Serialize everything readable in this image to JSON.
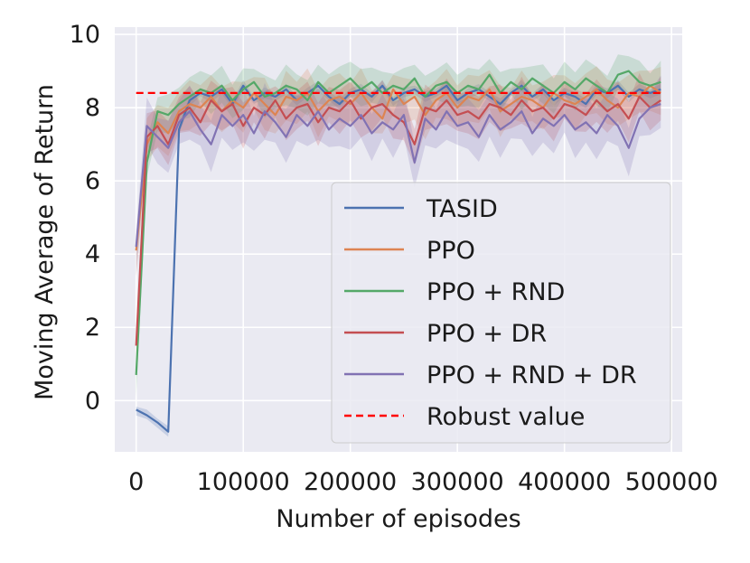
{
  "chart_data": {
    "type": "line",
    "title": "",
    "xlabel": "Number of episodes",
    "ylabel": "Moving Average of Return",
    "xlim": [
      -20000,
      510000
    ],
    "ylim": [
      -1.4,
      10.2
    ],
    "xticks": [
      0,
      100000,
      200000,
      300000,
      400000,
      500000
    ],
    "xtick_labels": [
      "0",
      "100000",
      "200000",
      "300000",
      "400000",
      "500000"
    ],
    "yticks": [
      0,
      2,
      4,
      6,
      8,
      10
    ],
    "ytick_labels": [
      "0",
      "2",
      "4",
      "6",
      "8",
      10
    ],
    "grid": true,
    "background": "#eaeaf2",
    "legend_position": "center-right",
    "series": [
      {
        "name": "TASID",
        "color": "#4c72b0",
        "x": [
          0,
          10000,
          20000,
          30000,
          40000,
          50000,
          60000,
          70000,
          80000,
          90000,
          100000,
          110000,
          120000,
          130000,
          140000,
          150000,
          160000,
          170000,
          180000,
          190000,
          200000,
          210000,
          220000,
          230000,
          240000,
          250000,
          260000,
          270000,
          280000,
          290000,
          300000,
          310000,
          320000,
          330000,
          340000,
          350000,
          360000,
          370000,
          380000,
          390000,
          400000,
          410000,
          420000,
          430000,
          440000,
          450000,
          460000,
          470000,
          480000,
          490000
        ],
        "y": [
          -0.25,
          -0.4,
          -0.6,
          -0.85,
          7.4,
          8.2,
          8.4,
          8.3,
          8.5,
          8.1,
          8.6,
          8.2,
          8.4,
          8.3,
          8.5,
          8.2,
          8.4,
          8.6,
          8.3,
          8.1,
          8.4,
          8.5,
          8.3,
          8.6,
          8.2,
          8.4,
          8.5,
          8.3,
          8.4,
          8.6,
          8.2,
          8.4,
          8.5,
          8.3,
          8.1,
          8.4,
          8.6,
          8.3,
          8.5,
          8.2,
          8.4,
          8.3,
          8.1,
          8.5,
          8.4,
          8.6,
          8.3,
          8.5,
          8.4,
          8.5
        ],
        "band": 0.12
      },
      {
        "name": "PPO",
        "color": "#dd8452",
        "x": [
          0,
          10000,
          20000,
          30000,
          40000,
          50000,
          60000,
          70000,
          80000,
          90000,
          100000,
          110000,
          120000,
          130000,
          140000,
          150000,
          160000,
          170000,
          180000,
          190000,
          200000,
          210000,
          220000,
          230000,
          240000,
          250000,
          260000,
          270000,
          280000,
          290000,
          300000,
          310000,
          320000,
          330000,
          340000,
          350000,
          360000,
          370000,
          380000,
          390000,
          400000,
          410000,
          420000,
          430000,
          440000,
          450000,
          460000,
          470000,
          480000,
          490000
        ],
        "y": [
          4.1,
          7.0,
          7.6,
          7.3,
          7.9,
          8.1,
          8.0,
          8.3,
          7.9,
          8.2,
          8.0,
          8.4,
          8.1,
          7.8,
          8.3,
          8.2,
          8.4,
          7.9,
          8.2,
          8.3,
          8.1,
          8.4,
          8.0,
          7.7,
          8.5,
          8.1,
          8.3,
          7.8,
          8.2,
          8.4,
          8.0,
          8.3,
          8.2,
          8.5,
          7.9,
          8.1,
          8.3,
          8.2,
          8.0,
          8.4,
          8.2,
          8.1,
          8.3,
          8.5,
          8.2,
          8.0,
          8.4,
          8.3,
          8.6,
          8.4
        ],
        "band": 0.55
      },
      {
        "name": "PPO + RND",
        "color": "#55a868",
        "x": [
          0,
          10000,
          20000,
          30000,
          40000,
          50000,
          60000,
          70000,
          80000,
          90000,
          100000,
          110000,
          120000,
          130000,
          140000,
          150000,
          160000,
          170000,
          180000,
          190000,
          200000,
          210000,
          220000,
          230000,
          240000,
          250000,
          260000,
          270000,
          280000,
          290000,
          300000,
          310000,
          320000,
          330000,
          340000,
          350000,
          360000,
          370000,
          380000,
          390000,
          400000,
          410000,
          420000,
          430000,
          440000,
          450000,
          460000,
          470000,
          480000,
          490000
        ],
        "y": [
          0.7,
          6.5,
          7.9,
          7.8,
          8.1,
          8.3,
          8.5,
          8.4,
          8.6,
          8.2,
          8.5,
          8.7,
          8.3,
          8.4,
          8.6,
          8.5,
          8.2,
          8.7,
          8.4,
          8.6,
          8.8,
          8.5,
          8.7,
          8.4,
          8.6,
          8.5,
          8.8,
          8.3,
          8.6,
          8.7,
          8.4,
          8.6,
          8.5,
          8.9,
          8.4,
          8.7,
          8.5,
          8.8,
          8.6,
          8.4,
          8.7,
          8.5,
          8.8,
          8.6,
          8.4,
          8.9,
          9.0,
          8.7,
          8.6,
          8.7
        ],
        "band": 0.45
      },
      {
        "name": "PPO + DR",
        "color": "#c44e52",
        "x": [
          0,
          10000,
          20000,
          30000,
          40000,
          50000,
          60000,
          70000,
          80000,
          90000,
          100000,
          110000,
          120000,
          130000,
          140000,
          150000,
          160000,
          170000,
          180000,
          190000,
          200000,
          210000,
          220000,
          230000,
          240000,
          250000,
          260000,
          270000,
          280000,
          290000,
          300000,
          310000,
          320000,
          330000,
          340000,
          350000,
          360000,
          370000,
          380000,
          390000,
          400000,
          410000,
          420000,
          430000,
          440000,
          450000,
          460000,
          470000,
          480000,
          490000
        ],
        "y": [
          1.5,
          7.2,
          7.5,
          7.0,
          7.8,
          8.0,
          7.6,
          8.2,
          7.9,
          8.1,
          7.5,
          8.0,
          7.8,
          8.2,
          7.7,
          8.0,
          8.1,
          7.6,
          8.0,
          7.9,
          8.2,
          7.7,
          8.0,
          8.1,
          7.8,
          7.6,
          7.0,
          8.0,
          7.9,
          8.2,
          7.8,
          7.9,
          7.7,
          8.1,
          8.0,
          7.8,
          8.2,
          7.9,
          8.0,
          7.7,
          8.1,
          8.0,
          7.8,
          8.2,
          7.9,
          8.1,
          7.7,
          8.3,
          8.0,
          8.2
        ],
        "band": 0.5
      },
      {
        "name": "PPO + RND + DR",
        "color": "#8172b3",
        "x": [
          0,
          10000,
          20000,
          30000,
          40000,
          50000,
          60000,
          70000,
          80000,
          90000,
          100000,
          110000,
          120000,
          130000,
          140000,
          150000,
          160000,
          170000,
          180000,
          190000,
          200000,
          210000,
          220000,
          230000,
          240000,
          250000,
          260000,
          270000,
          280000,
          290000,
          300000,
          310000,
          320000,
          330000,
          340000,
          350000,
          360000,
          370000,
          380000,
          390000,
          400000,
          410000,
          420000,
          430000,
          440000,
          450000,
          460000,
          470000,
          480000,
          490000
        ],
        "y": [
          4.2,
          7.5,
          7.2,
          6.9,
          7.6,
          7.9,
          7.4,
          7.0,
          7.8,
          7.5,
          7.8,
          7.3,
          7.9,
          7.6,
          7.2,
          7.8,
          7.5,
          7.9,
          7.4,
          7.7,
          7.5,
          7.8,
          7.3,
          7.6,
          7.4,
          7.8,
          6.5,
          7.7,
          7.4,
          7.9,
          7.5,
          7.6,
          7.2,
          7.8,
          7.4,
          7.6,
          7.9,
          7.3,
          7.7,
          7.5,
          7.8,
          7.4,
          7.6,
          7.3,
          7.8,
          7.5,
          6.9,
          7.7,
          8.0,
          8.1
        ],
        "band": 0.6
      },
      {
        "name": "Robust value",
        "color": "#ff0000",
        "style": "dashed",
        "x": [
          0,
          490000
        ],
        "y": [
          8.4,
          8.4
        ]
      }
    ]
  }
}
